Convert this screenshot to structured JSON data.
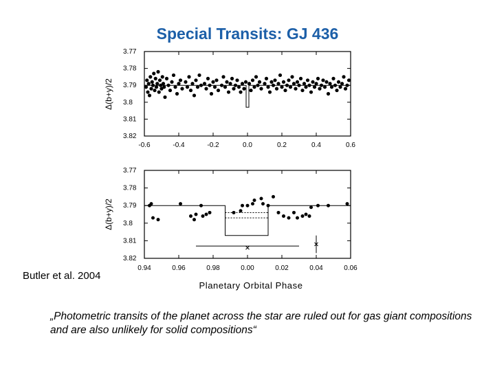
{
  "slide": {
    "title": "Special Transits: GJ 436",
    "credit": "Butler et al. 2004",
    "quote": "„Photometric transits of the planet across the star are ruled out for gas giant compositions and are also unlikely for solid compositions“"
  },
  "chart_data": [
    {
      "type": "scatter",
      "ylabel": "Δ(b+y)/2",
      "xlabel": "",
      "xlim": [
        -0.6,
        0.6
      ],
      "ylim": [
        3.82,
        3.77
      ],
      "y_inverted": true,
      "xticks": [
        "-0.6",
        "-0.4",
        "-0.2",
        "0.0",
        "0.2",
        "0.4",
        "0.6"
      ],
      "yticks": [
        "3.77",
        "3.78",
        "3.79",
        "3.8",
        "3.81",
        "3.82"
      ],
      "model_level": 3.79,
      "transit_window": [
        -0.008,
        0.008
      ],
      "transit_depth": 3.803,
      "marker_color": "#000000",
      "points": [
        [
          -0.59,
          3.791
        ],
        [
          -0.585,
          3.787
        ],
        [
          -0.58,
          3.794
        ],
        [
          -0.575,
          3.789
        ],
        [
          -0.57,
          3.796
        ],
        [
          -0.565,
          3.785
        ],
        [
          -0.56,
          3.792
        ],
        [
          -0.555,
          3.788
        ],
        [
          -0.55,
          3.79
        ],
        [
          -0.545,
          3.783
        ],
        [
          -0.54,
          3.793
        ],
        [
          -0.535,
          3.786
        ],
        [
          -0.53,
          3.791
        ],
        [
          -0.525,
          3.789
        ],
        [
          -0.52,
          3.782
        ],
        [
          -0.515,
          3.794
        ],
        [
          -0.51,
          3.787
        ],
        [
          -0.505,
          3.79
        ],
        [
          -0.5,
          3.792
        ],
        [
          -0.495,
          3.785
        ],
        [
          -0.49,
          3.789
        ],
        [
          -0.485,
          3.791
        ],
        [
          -0.48,
          3.797
        ],
        [
          -0.47,
          3.786
        ],
        [
          -0.46,
          3.79
        ],
        [
          -0.45,
          3.793
        ],
        [
          -0.44,
          3.788
        ],
        [
          -0.43,
          3.784
        ],
        [
          -0.42,
          3.791
        ],
        [
          -0.41,
          3.795
        ],
        [
          -0.4,
          3.789
        ],
        [
          -0.39,
          3.787
        ],
        [
          -0.38,
          3.792
        ],
        [
          -0.36,
          3.788
        ],
        [
          -0.35,
          3.791
        ],
        [
          -0.34,
          3.785
        ],
        [
          -0.33,
          3.793
        ],
        [
          -0.32,
          3.789
        ],
        [
          -0.31,
          3.796
        ],
        [
          -0.3,
          3.787
        ],
        [
          -0.29,
          3.791
        ],
        [
          -0.28,
          3.784
        ],
        [
          -0.27,
          3.79
        ],
        [
          -0.25,
          3.789
        ],
        [
          -0.24,
          3.792
        ],
        [
          -0.23,
          3.786
        ],
        [
          -0.22,
          3.79
        ],
        [
          -0.21,
          3.795
        ],
        [
          -0.2,
          3.788
        ],
        [
          -0.19,
          3.791
        ],
        [
          -0.18,
          3.787
        ],
        [
          -0.17,
          3.793
        ],
        [
          -0.15,
          3.79
        ],
        [
          -0.14,
          3.785
        ],
        [
          -0.13,
          3.791
        ],
        [
          -0.12,
          3.788
        ],
        [
          -0.11,
          3.794
        ],
        [
          -0.1,
          3.789
        ],
        [
          -0.09,
          3.786
        ],
        [
          -0.08,
          3.792
        ],
        [
          -0.07,
          3.79
        ],
        [
          -0.06,
          3.787
        ],
        [
          -0.05,
          3.791
        ],
        [
          -0.04,
          3.794
        ],
        [
          -0.03,
          3.789
        ],
        [
          -0.02,
          3.792
        ],
        [
          -0.01,
          3.788
        ],
        [
          0.01,
          3.789
        ],
        [
          0.02,
          3.793
        ],
        [
          0.03,
          3.787
        ],
        [
          0.04,
          3.791
        ],
        [
          0.05,
          3.785
        ],
        [
          0.06,
          3.79
        ],
        [
          0.07,
          3.788
        ],
        [
          0.08,
          3.792
        ],
        [
          0.1,
          3.789
        ],
        [
          0.11,
          3.786
        ],
        [
          0.12,
          3.791
        ],
        [
          0.13,
          3.794
        ],
        [
          0.14,
          3.788
        ],
        [
          0.15,
          3.79
        ],
        [
          0.16,
          3.787
        ],
        [
          0.17,
          3.792
        ],
        [
          0.18,
          3.789
        ],
        [
          0.19,
          3.784
        ],
        [
          0.2,
          3.791
        ],
        [
          0.21,
          3.788
        ],
        [
          0.22,
          3.793
        ],
        [
          0.23,
          3.79
        ],
        [
          0.24,
          3.787
        ],
        [
          0.25,
          3.791
        ],
        [
          0.26,
          3.785
        ],
        [
          0.27,
          3.789
        ],
        [
          0.28,
          3.792
        ],
        [
          0.29,
          3.788
        ],
        [
          0.3,
          3.79
        ],
        [
          0.31,
          3.786
        ],
        [
          0.32,
          3.793
        ],
        [
          0.33,
          3.789
        ],
        [
          0.34,
          3.791
        ],
        [
          0.35,
          3.787
        ],
        [
          0.36,
          3.79
        ],
        [
          0.37,
          3.794
        ],
        [
          0.38,
          3.788
        ],
        [
          0.39,
          3.791
        ],
        [
          0.4,
          3.789
        ],
        [
          0.41,
          3.786
        ],
        [
          0.42,
          3.792
        ],
        [
          0.43,
          3.79
        ],
        [
          0.44,
          3.787
        ],
        [
          0.45,
          3.791
        ],
        [
          0.46,
          3.788
        ],
        [
          0.47,
          3.795
        ],
        [
          0.48,
          3.789
        ],
        [
          0.49,
          3.791
        ],
        [
          0.5,
          3.786
        ],
        [
          0.51,
          3.79
        ],
        [
          0.52,
          3.793
        ],
        [
          0.53,
          3.788
        ],
        [
          0.54,
          3.791
        ],
        [
          0.55,
          3.789
        ],
        [
          0.56,
          3.785
        ],
        [
          0.57,
          3.792
        ],
        [
          0.58,
          3.79
        ],
        [
          0.59,
          3.787
        ]
      ]
    },
    {
      "type": "scatter",
      "ylabel": "Δ(b+y)/2",
      "xlabel": "Planetary Orbital Phase",
      "xlim": [
        -0.06,
        0.06
      ],
      "ylim": [
        3.82,
        3.77
      ],
      "y_inverted": true,
      "xticks": [
        "0.94",
        "0.96",
        "0.98",
        "0.00",
        "0.02",
        "0.04",
        "0.06"
      ],
      "yticks": [
        "3.77",
        "3.78",
        "3.79",
        "3.8",
        "3.81",
        "3.82"
      ],
      "model_level": 3.79,
      "transit_window": [
        -0.013,
        0.012
      ],
      "transit_depth": 3.807,
      "dotted_levels": [
        3.794,
        3.797
      ],
      "marker_color": "#000000",
      "points": [
        [
          -0.057,
          3.79
        ],
        [
          -0.056,
          3.789
        ],
        [
          -0.055,
          3.797
        ],
        [
          -0.052,
          3.798
        ],
        [
          -0.039,
          3.789
        ],
        [
          -0.033,
          3.796
        ],
        [
          -0.031,
          3.798
        ],
        [
          -0.03,
          3.795
        ],
        [
          -0.027,
          3.79
        ],
        [
          -0.026,
          3.796
        ],
        [
          -0.024,
          3.795
        ],
        [
          -0.022,
          3.794
        ],
        [
          -0.008,
          3.794
        ],
        [
          -0.004,
          3.793
        ],
        [
          -0.003,
          3.79
        ],
        [
          0.0,
          3.79
        ],
        [
          0.003,
          3.789
        ],
        [
          0.004,
          3.787
        ],
        [
          0.008,
          3.786
        ],
        [
          0.009,
          3.789
        ],
        [
          0.012,
          3.79
        ],
        [
          0.015,
          3.785
        ],
        [
          0.018,
          3.794
        ],
        [
          0.021,
          3.796
        ],
        [
          0.024,
          3.797
        ],
        [
          0.027,
          3.794
        ],
        [
          0.029,
          3.797
        ],
        [
          0.032,
          3.796
        ],
        [
          0.034,
          3.795
        ],
        [
          0.036,
          3.796
        ],
        [
          0.037,
          3.791
        ],
        [
          0.041,
          3.79
        ],
        [
          0.047,
          3.79
        ],
        [
          0.058,
          3.789
        ]
      ],
      "crosses": [
        [
          0.0,
          3.814
        ],
        [
          0.04,
          3.812
        ]
      ],
      "error_bar_x": [
        -0.03,
        0.03
      ],
      "error_bar_y": 3.813,
      "error_bar_y_span": [
        3.807,
        3.817
      ],
      "error_bar_y_at": 0.04
    }
  ]
}
